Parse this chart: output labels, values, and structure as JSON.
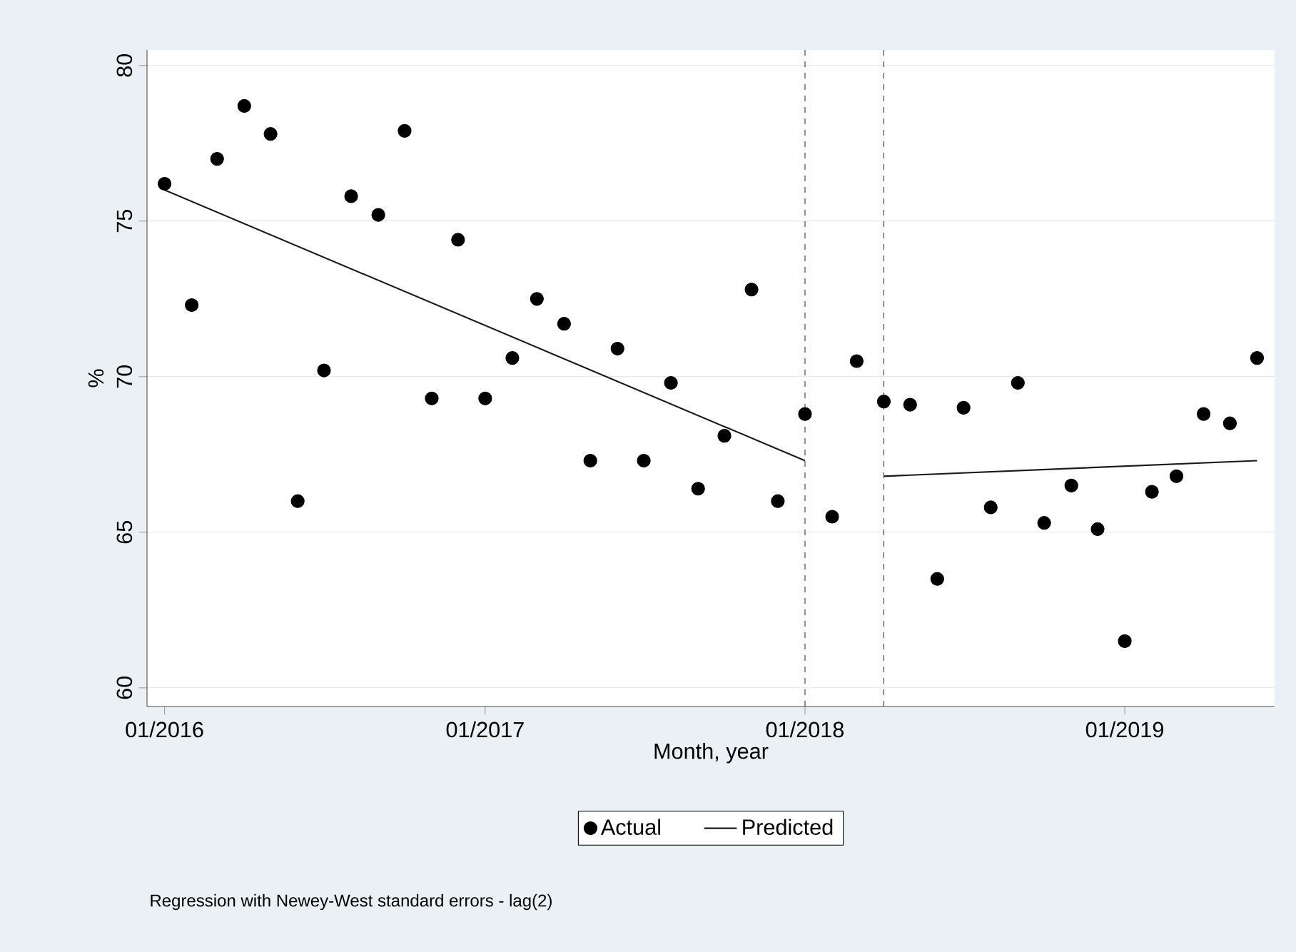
{
  "chart_data": {
    "type": "scatter",
    "xlabel": "Month, year",
    "ylabel": "%",
    "x": [
      "2016-01",
      "2016-02",
      "2016-03",
      "2016-04",
      "2016-05",
      "2016-06",
      "2016-07",
      "2016-08",
      "2016-09",
      "2016-10",
      "2016-11",
      "2016-12",
      "2017-01",
      "2017-02",
      "2017-03",
      "2017-04",
      "2017-05",
      "2017-06",
      "2017-07",
      "2017-08",
      "2017-09",
      "2017-10",
      "2017-11",
      "2017-12",
      "2018-01",
      "2018-02",
      "2018-03",
      "2018-04",
      "2018-05",
      "2018-06",
      "2018-07",
      "2018-08",
      "2018-09",
      "2018-10",
      "2018-11",
      "2018-12",
      "2019-01",
      "2019-02",
      "2019-03",
      "2019-04",
      "2019-05",
      "2019-06"
    ],
    "series": [
      {
        "name": "Actual",
        "type": "scatter",
        "marker": "circle",
        "color": "#000000",
        "values": [
          76.2,
          72.3,
          77.0,
          78.7,
          77.8,
          66.0,
          70.2,
          75.8,
          75.2,
          77.9,
          69.3,
          74.4,
          69.3,
          70.6,
          72.5,
          71.7,
          67.3,
          70.9,
          67.3,
          69.8,
          66.4,
          68.1,
          72.8,
          66.0,
          68.8,
          65.5,
          70.5,
          69.2,
          69.1,
          63.5,
          69.0,
          65.8,
          69.8,
          65.3,
          66.5,
          65.1,
          61.5,
          66.3,
          66.8,
          68.8,
          68.5,
          70.6
        ]
      },
      {
        "name": "Predicted",
        "type": "line",
        "color": "#1a1a1a",
        "x": [
          "2016-01",
          "2018-01",
          "2018-02",
          "2018-04",
          "2019-06"
        ],
        "values": [
          76.0,
          67.3,
          null,
          66.8,
          67.3
        ]
      }
    ],
    "xlim": [
      "2015-12-12",
      "2019-06-21"
    ],
    "xticks": [
      {
        "value": "2016-01",
        "label": "01/2016"
      },
      {
        "value": "2017-01",
        "label": "01/2017"
      },
      {
        "value": "2018-01",
        "label": "01/2018"
      },
      {
        "value": "2019-01",
        "label": "01/2019"
      }
    ],
    "ylim": [
      59.4,
      80.5
    ],
    "yticks": [
      60,
      65,
      70,
      75,
      80
    ],
    "grid": "y",
    "legend": "bottom",
    "ref_lines": [
      {
        "axis": "x",
        "value": "2018-01",
        "line_style": "dashed"
      },
      {
        "axis": "x",
        "value": "2018-04",
        "line_style": "dashed"
      }
    ],
    "annotations": [
      "Regression with Newey-West standard errors - lag(2)"
    ]
  }
}
